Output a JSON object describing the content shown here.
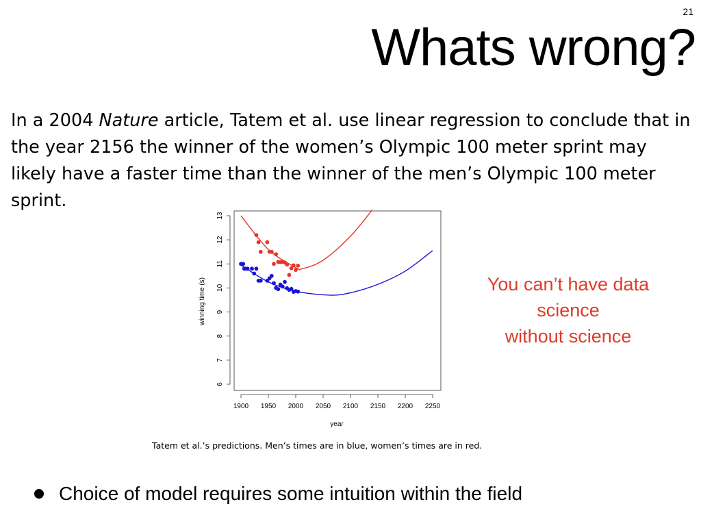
{
  "slide": {
    "page_number": "21",
    "title": "Whats wrong?",
    "intro": {
      "part1": "In a 2004 ",
      "journal": "Nature",
      "part2": " article, Tatem et al. use linear regression to conclude that in the year 2156 the winner of the women’s Olympic 100 meter sprint may likely have a faster time than the winner of the men’s Olympic 100 meter sprint."
    },
    "caption": "Tatem et al.’s predictions. Men’s times are in blue, women’s times are in red.",
    "callout": {
      "line1": "You can’t have data",
      "line2": "science",
      "line3": "without science"
    },
    "bullet": "Choice of model requires some intuition within the field"
  },
  "colors": {
    "men": "#1a14d6",
    "women": "#e8352a",
    "callout": "#e03a2a"
  },
  "chart_data": {
    "type": "scatter",
    "xlabel": "year",
    "ylabel": "winning time (s)",
    "xlim": [
      1900,
      2250
    ],
    "ylim": [
      6,
      13
    ],
    "xticks": [
      1900,
      1950,
      2000,
      2050,
      2100,
      2150,
      2200,
      2250
    ],
    "yticks": [
      6,
      7,
      8,
      9,
      10,
      11,
      12,
      13
    ],
    "series": [
      {
        "color": "#1a14d6",
        "points": [
          [
            1900,
            11.0
          ],
          [
            1904,
            11.0
          ],
          [
            1906,
            10.8
          ],
          [
            1908,
            10.8
          ],
          [
            1912,
            10.8
          ],
          [
            1920,
            10.8
          ],
          [
            1924,
            10.6
          ],
          [
            1928,
            10.8
          ],
          [
            1932,
            10.3
          ],
          [
            1936,
            10.3
          ],
          [
            1948,
            10.3
          ],
          [
            1952,
            10.4
          ],
          [
            1956,
            10.5
          ],
          [
            1960,
            10.2
          ],
          [
            1964,
            10.0
          ],
          [
            1968,
            9.95
          ],
          [
            1972,
            10.14
          ],
          [
            1976,
            10.06
          ],
          [
            1980,
            10.25
          ],
          [
            1984,
            9.99
          ],
          [
            1988,
            9.92
          ],
          [
            1992,
            9.96
          ],
          [
            1996,
            9.84
          ],
          [
            2000,
            9.87
          ],
          [
            2004,
            9.85
          ]
        ],
        "fit": [
          [
            1900,
            10.95
          ],
          [
            1950,
            10.25
          ],
          [
            2000,
            9.86
          ],
          [
            2062,
            9.7
          ],
          [
            2100,
            9.8
          ],
          [
            2150,
            10.15
          ],
          [
            2200,
            10.7
          ],
          [
            2250,
            11.55
          ]
        ]
      },
      {
        "color": "#e8352a",
        "points": [
          [
            1928,
            12.2
          ],
          [
            1932,
            11.9
          ],
          [
            1936,
            11.5
          ],
          [
            1948,
            11.9
          ],
          [
            1952,
            11.5
          ],
          [
            1956,
            11.5
          ],
          [
            1960,
            11.0
          ],
          [
            1964,
            11.4
          ],
          [
            1968,
            11.08
          ],
          [
            1972,
            11.07
          ],
          [
            1976,
            11.08
          ],
          [
            1980,
            11.06
          ],
          [
            1984,
            10.97
          ],
          [
            1988,
            10.54
          ],
          [
            1992,
            10.82
          ],
          [
            1996,
            10.94
          ],
          [
            2000,
            10.75
          ],
          [
            2004,
            10.93
          ]
        ],
        "fit": [
          [
            1900,
            13.0
          ],
          [
            1950,
            11.6
          ],
          [
            2000,
            10.85
          ],
          [
            2012,
            10.8
          ],
          [
            2050,
            11.15
          ],
          [
            2100,
            12.15
          ],
          [
            2140,
            13.25
          ]
        ]
      }
    ]
  }
}
